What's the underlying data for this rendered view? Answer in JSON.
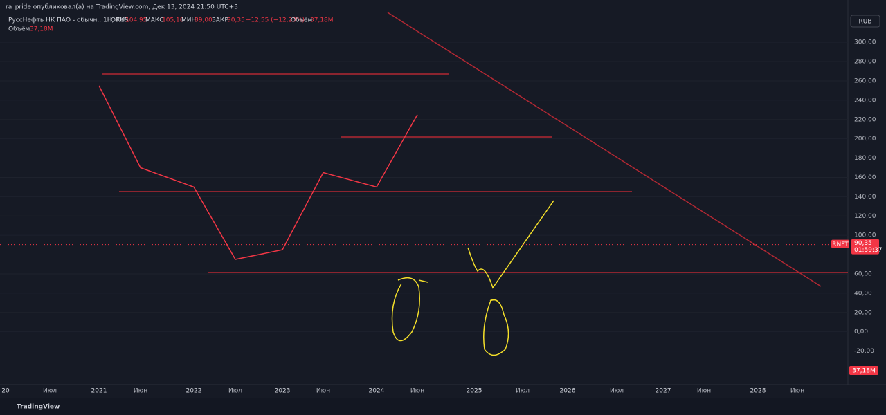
{
  "header": {
    "publisher": "ra_pride опубликовал(а) на TradingView.com, Дек 13, 2024 21:50 UTC+3"
  },
  "legend": {
    "symbol": "РуссНефть НК ПАО - обычн., 1Н, RUS",
    "open_label": "ОТКР",
    "open": "104,95",
    "high_label": "МАКС",
    "high": "105,10",
    "low_label": "МИН",
    "low": "89,00",
    "close_label": "ЗАКР",
    "close": "90,35",
    "change": "−12,55 (−12,20%)",
    "volume_label": "Объём",
    "volume": "37,18M",
    "volume_row_label": "Объём",
    "volume_row_value": "37,18M"
  },
  "currency": "RUB",
  "last_price": {
    "ticker": "RNFT",
    "value": 90.35,
    "label": "90,35",
    "timer": "01:59:37"
  },
  "volume_badge": "37,18M",
  "footer": {
    "brand": "TradingView"
  },
  "chart_data": {
    "type": "line",
    "color": "#f23645",
    "categories": [
      "20",
      "Июл",
      "2021",
      "Июн",
      "2022",
      "Июл",
      "2023",
      "Июн",
      "2024",
      "Июн",
      "2025",
      "Июл",
      "2026",
      "Июл",
      "2027",
      "Июн",
      "2028",
      "Июн"
    ],
    "series": [
      {
        "name": "RNFT",
        "color": "#f23645",
        "values": [
          null,
          null,
          255,
          170,
          150,
          75,
          85,
          165,
          150,
          225,
          null,
          null,
          null,
          null,
          null,
          null,
          null,
          null
        ]
      }
    ],
    "ylim": [
      -54,
      329.5
    ],
    "yticks": [
      {
        "value": 300,
        "label": "300,00"
      },
      {
        "value": 280,
        "label": "280,00"
      },
      {
        "value": 260,
        "label": "260,00"
      },
      {
        "value": 240,
        "label": "240,00"
      },
      {
        "value": 220,
        "label": "220,00"
      },
      {
        "value": 200,
        "label": "200,00"
      },
      {
        "value": 180,
        "label": "180,00"
      },
      {
        "value": 160,
        "label": "160,00"
      },
      {
        "value": 140,
        "label": "140,00"
      },
      {
        "value": 120,
        "label": "120,00"
      },
      {
        "value": 100,
        "label": "100,00"
      },
      {
        "value": 60,
        "label": "60,00"
      },
      {
        "value": 40,
        "label": "40,00"
      },
      {
        "value": 20,
        "label": "20,00"
      },
      {
        "value": 0,
        "label": "0,00"
      },
      {
        "value": -20,
        "label": "-20,00"
      }
    ],
    "grid": true
  }
}
